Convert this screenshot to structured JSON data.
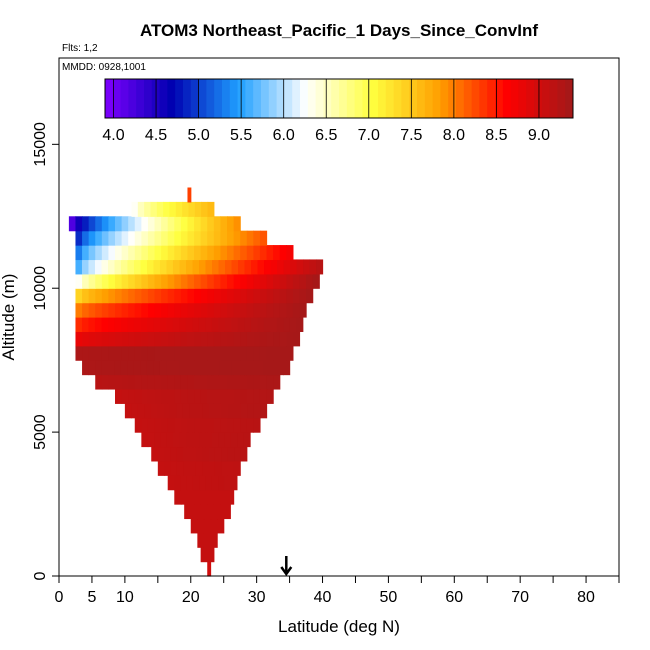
{
  "chart_data": {
    "type": "heatmap",
    "title": "ATOM3 Northeast_Pacific_1 Days_Since_ConvInf",
    "flights_label": "Flts: 1,2",
    "mmdd_label": "MMDD: 0928,1001",
    "xlabel": "Latitude (deg N)",
    "ylabel": "Altitude (m)",
    "xlim": [
      0,
      85
    ],
    "ylim": [
      0,
      18000
    ],
    "x_ticks": [
      0,
      5,
      10,
      20,
      30,
      40,
      50,
      60,
      70,
      80
    ],
    "x_minor_ticks": [
      15,
      25,
      35,
      45,
      55,
      65,
      75,
      85
    ],
    "y_ticks": [
      0,
      5000,
      10000,
      15000
    ],
    "colorbar": {
      "range": [
        3.9,
        9.4
      ],
      "ticks": [
        4.0,
        4.5,
        5.0,
        5.5,
        6.0,
        6.5,
        7.0,
        7.5,
        8.0,
        8.5,
        9.0
      ],
      "colors": [
        "#7f00ff",
        "#0000b0",
        "#1f9fff",
        "#ffffff",
        "#ffff3f",
        "#ff9f00",
        "#ff0000",
        "#a01a1a"
      ]
    },
    "rows": [
      {
        "alt": 0,
        "lat_min": 22.5,
        "lat_max": 23,
        "left_value": 9.0,
        "right_value": 9.0
      },
      {
        "alt": 500,
        "lat_min": 21.5,
        "lat_max": 23.5,
        "left_value": 9.1,
        "right_value": 9.1
      },
      {
        "alt": 1000,
        "lat_min": 21,
        "lat_max": 24,
        "left_value": 9.1,
        "right_value": 9.1
      },
      {
        "alt": 1500,
        "lat_min": 20,
        "lat_max": 25,
        "left_value": 9.1,
        "right_value": 9.1
      },
      {
        "alt": 2000,
        "lat_min": 19,
        "lat_max": 26,
        "left_value": 9.1,
        "right_value": 9.1
      },
      {
        "alt": 2500,
        "lat_min": 17.5,
        "lat_max": 26.5,
        "left_value": 9.1,
        "right_value": 9.1
      },
      {
        "alt": 3000,
        "lat_min": 16.5,
        "lat_max": 27,
        "left_value": 9.1,
        "right_value": 9.15
      },
      {
        "alt": 3500,
        "lat_min": 15,
        "lat_max": 27.5,
        "left_value": 9.1,
        "right_value": 9.15
      },
      {
        "alt": 4000,
        "lat_min": 14,
        "lat_max": 28.5,
        "left_value": 9.1,
        "right_value": 9.2
      },
      {
        "alt": 4500,
        "lat_min": 12.5,
        "lat_max": 29,
        "left_value": 9.1,
        "right_value": 9.2
      },
      {
        "alt": 5000,
        "lat_min": 11.5,
        "lat_max": 30.5,
        "left_value": 9.1,
        "right_value": 9.2
      },
      {
        "alt": 5500,
        "lat_min": 10,
        "lat_max": 31.5,
        "left_value": 9.1,
        "right_value": 9.25
      },
      {
        "alt": 6000,
        "lat_min": 8.5,
        "lat_max": 32.5,
        "left_value": 9.1,
        "right_value": 9.25
      },
      {
        "alt": 6500,
        "lat_min": 5.5,
        "lat_max": 33.5,
        "left_value": 9.2,
        "right_value": 9.3
      },
      {
        "alt": 7000,
        "lat_min": 3.5,
        "lat_max": 35,
        "left_value": 9.3,
        "right_value": 9.35
      },
      {
        "alt": 7500,
        "lat_min": 2.5,
        "lat_max": 35.5,
        "left_value": 9.3,
        "right_value": 9.35
      },
      {
        "alt": 8000,
        "lat_min": 2.5,
        "lat_max": 36.5,
        "left_value": 8.8,
        "right_value": 9.35
      },
      {
        "alt": 8500,
        "lat_min": 2.5,
        "lat_max": 37,
        "left_value": 8.4,
        "right_value": 9.35
      },
      {
        "alt": 9000,
        "lat_min": 2.5,
        "lat_max": 37.5,
        "left_value": 8.0,
        "right_value": 9.35
      },
      {
        "alt": 9500,
        "lat_min": 2.5,
        "lat_max": 38.5,
        "left_value": 7.4,
        "right_value": 9.35
      },
      {
        "alt": 10000,
        "lat_min": 2.5,
        "lat_max": 39.5,
        "left_value": 6.3,
        "right_value": 9.35
      },
      {
        "alt": 10500,
        "lat_min": 2.5,
        "lat_max": 40,
        "left_value": 5.6,
        "right_value": 9.2
      },
      {
        "alt": 11000,
        "lat_min": 2.5,
        "lat_max": 35.5,
        "left_value": 5.3,
        "right_value": 8.7
      },
      {
        "alt": 11500,
        "lat_min": 2.5,
        "lat_max": 31.5,
        "left_value": 4.9,
        "right_value": 8.2
      },
      {
        "alt": 12000,
        "lat_min": 1.5,
        "lat_max": 27.5,
        "left_value": 4.2,
        "right_value": 7.9
      },
      {
        "alt": 12500,
        "lat_min": 11,
        "lat_max": 23.5,
        "left_value": 6.3,
        "right_value": 7.6
      },
      {
        "alt": 13000,
        "lat_min": 19.5,
        "lat_max": 20,
        "left_value": 8.3,
        "right_value": 8.3
      }
    ],
    "row_height": 500,
    "arrow_marker": {
      "x": 34.5,
      "direction": "down"
    }
  }
}
